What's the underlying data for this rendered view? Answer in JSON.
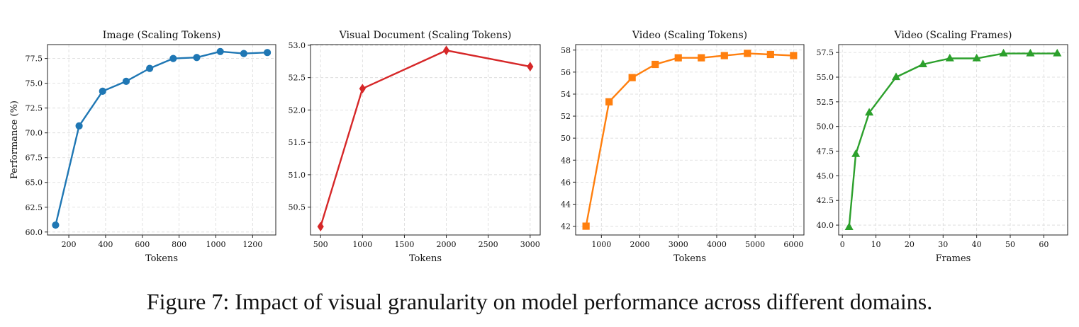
{
  "caption": "Figure 7: Impact of visual granularity on model performance across different domains.",
  "chart_data": [
    {
      "type": "line",
      "title": "Image (Scaling Tokens)",
      "xlabel": "Tokens",
      "ylabel": "Performance (%)",
      "color": "#1f77b4",
      "marker": "circle",
      "xlim": [
        84,
        1326
      ],
      "ylim": [
        59.7,
        78.9
      ],
      "xticks": [
        200,
        400,
        600,
        800,
        1000,
        1200
      ],
      "yticks": [
        60.0,
        62.5,
        65.0,
        67.5,
        70.0,
        72.5,
        75.0,
        77.5
      ],
      "ytick_decimals": 1,
      "x": [
        128,
        256,
        384,
        512,
        640,
        768,
        896,
        1024,
        1152,
        1280
      ],
      "values": [
        60.7,
        70.7,
        74.2,
        75.2,
        76.5,
        77.5,
        77.6,
        78.2,
        78.0,
        78.1
      ]
    },
    {
      "type": "line",
      "title": "Visual Document (Scaling Tokens)",
      "xlabel": "Tokens",
      "ylabel": "",
      "color": "#d62728",
      "marker": "diamond",
      "xlim": [
        380,
        3120
      ],
      "ylim": [
        50.07,
        53.01
      ],
      "xticks": [
        500,
        1000,
        1500,
        2000,
        2500,
        3000
      ],
      "yticks": [
        50.5,
        51.0,
        51.5,
        52.0,
        52.5,
        53.0
      ],
      "ytick_decimals": 1,
      "x": [
        500,
        1000,
        2000,
        3000
      ],
      "values": [
        50.2,
        52.33,
        52.92,
        52.67
      ]
    },
    {
      "type": "line",
      "title": "Video (Scaling Tokens)",
      "xlabel": "Tokens",
      "ylabel": "",
      "color": "#ff7f0e",
      "marker": "square",
      "xlim": [
        330,
        6270
      ],
      "ylim": [
        41.2,
        58.5
      ],
      "xticks": [
        1000,
        2000,
        3000,
        4000,
        5000,
        6000
      ],
      "yticks": [
        42,
        44,
        46,
        48,
        50,
        52,
        54,
        56,
        58
      ],
      "ytick_decimals": 0,
      "x": [
        600,
        1200,
        1800,
        2400,
        3000,
        3600,
        4200,
        4800,
        5400,
        6000
      ],
      "values": [
        42.0,
        53.3,
        55.5,
        56.7,
        57.3,
        57.3,
        57.5,
        57.7,
        57.6,
        57.5
      ]
    },
    {
      "type": "line",
      "title": "Video (Scaling Frames)",
      "xlabel": "Frames",
      "ylabel": "",
      "color": "#2ca02c",
      "marker": "triangle",
      "xlim": [
        -1.1,
        67.1
      ],
      "ylim": [
        39.0,
        58.3
      ],
      "xticks": [
        0,
        10,
        20,
        30,
        40,
        50,
        60
      ],
      "yticks": [
        40.0,
        42.5,
        45.0,
        47.5,
        50.0,
        52.5,
        55.0,
        57.5
      ],
      "ytick_decimals": 1,
      "x": [
        2,
        4,
        8,
        16,
        24,
        32,
        40,
        48,
        56,
        64
      ],
      "values": [
        39.8,
        47.2,
        51.4,
        55.0,
        56.3,
        56.9,
        56.9,
        57.4,
        57.4,
        57.4
      ]
    }
  ]
}
